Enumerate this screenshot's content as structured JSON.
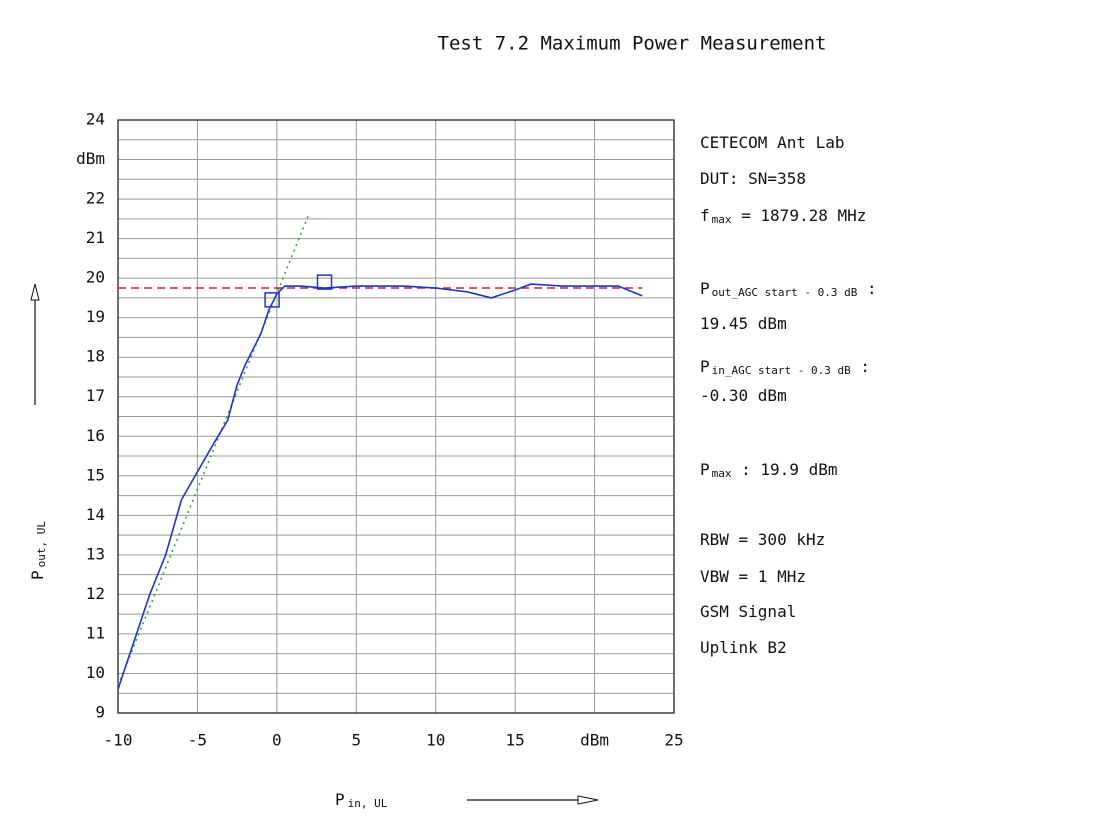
{
  "chart_data": {
    "type": "line",
    "title": "Test 7.2 Maximum Power Measurement",
    "x_label": {
      "main": "P",
      "sub": "in, UL"
    },
    "y_label": {
      "main": "P",
      "sub": "out, UL"
    },
    "xlim": [
      -10,
      25
    ],
    "ylim": [
      9,
      24
    ],
    "xticks": [
      -10,
      -5,
      0,
      5,
      10,
      15,
      {
        "value": 20,
        "label": "dBm"
      },
      25
    ],
    "yticks": [
      9,
      10,
      11,
      12,
      13,
      14,
      15,
      16,
      17,
      18,
      19,
      20,
      21,
      22,
      {
        "value": 23,
        "label": "dBm"
      },
      24
    ],
    "y_minor_ticks": [
      9.5,
      10.5,
      11.5,
      12.5,
      13.5,
      14.5,
      15.5,
      16.5,
      17.5,
      18.5,
      19.5,
      20.5,
      21.5,
      22.5,
      23.5
    ],
    "grid": true,
    "series": [
      {
        "color": "#2ca02c",
        "style": "dotted",
        "x": [
          -10,
          2
        ],
        "values": [
          9.7,
          21.6
        ]
      },
      {
        "color": "#cc2222",
        "style": "dashed",
        "x": [
          -10,
          23
        ],
        "values": [
          19.75,
          19.75
        ]
      },
      {
        "color": "#2233cc",
        "style": "solid",
        "x": [
          -10,
          -9,
          -8,
          -7,
          -6,
          -5,
          -4,
          -3.1,
          -2.5,
          -2,
          -1,
          -0.5,
          0,
          0.5,
          1.5,
          3,
          5,
          8,
          10,
          12,
          13.5,
          15,
          16,
          18,
          20,
          21.5,
          23
        ],
        "values": [
          9.6,
          10.8,
          12,
          13,
          14.4,
          15.1,
          15.8,
          16.4,
          17.3,
          17.8,
          18.6,
          19.2,
          19.6,
          19.8,
          19.8,
          19.75,
          19.8,
          19.8,
          19.75,
          19.65,
          19.5,
          19.7,
          19.85,
          19.8,
          19.8,
          19.8,
          19.55
        ]
      }
    ],
    "markers": {
      "color": "#2233cc",
      "x": [
        -0.3,
        3
      ],
      "values": [
        19.45,
        19.9
      ]
    },
    "notes": [
      [
        {
          "text": "CETECOM Ant Lab"
        }
      ],
      [
        {
          "text": "DUT: SN=358"
        }
      ],
      [
        {
          "text": "f"
        },
        {
          "text": "max",
          "sub": true
        },
        {
          "text": " = 1879.28 MHz"
        }
      ],
      [
        {
          "text": "P"
        },
        {
          "text": "out_AGC start - 0.3 dB",
          "sub": true
        },
        {
          "text": " :"
        }
      ],
      [
        {
          "text": "19.45 dBm"
        }
      ],
      [
        {
          "text": "P"
        },
        {
          "text": "in_AGC start - 0.3 dB",
          "sub": true
        },
        {
          "text": " :"
        }
      ],
      [
        {
          "text": "-0.30 dBm"
        }
      ],
      [
        {
          "text": "P"
        },
        {
          "text": "max",
          "sub": true
        },
        {
          "text": " : 19.9 dBm"
        }
      ],
      [
        {
          "text": "RBW = 300 kHz"
        }
      ],
      [
        {
          "text": "VBW = 1 MHz"
        }
      ],
      [
        {
          "text": "GSM Signal"
        }
      ],
      [
        {
          "text": "Uplink B2"
        }
      ]
    ]
  }
}
